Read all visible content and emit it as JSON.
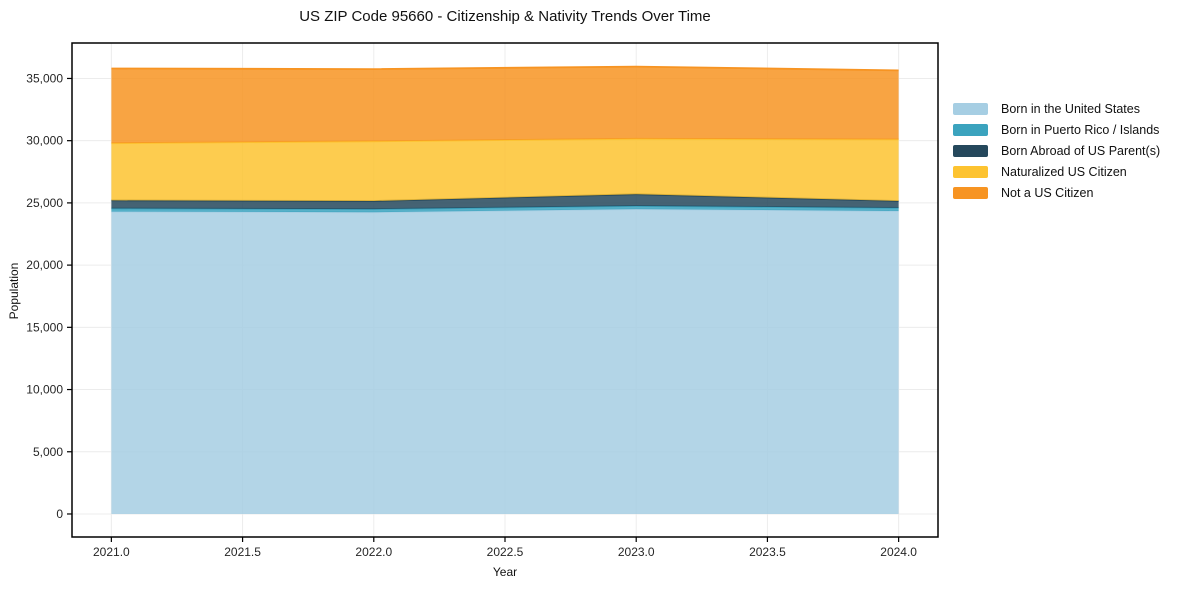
{
  "title": "US ZIP Code 95660 - Citizenship & Nativity Trends Over Time",
  "chart_data": {
    "type": "area",
    "stacked": true,
    "title": "US ZIP Code 95660 - Citizenship & Nativity Trends Over Time",
    "xlabel": "Year",
    "ylabel": "Population",
    "x": [
      2021,
      2022,
      2023,
      2024
    ],
    "series": [
      {
        "name": "Born in the United States",
        "color": "#a6cee3",
        "values": [
          24300,
          24250,
          24500,
          24350
        ]
      },
      {
        "name": "Born in Puerto Rico / Islands",
        "color": "#3ba3be",
        "values": [
          250,
          250,
          250,
          250
        ]
      },
      {
        "name": "Born Abroad of US Parent(s)",
        "color": "#25485c",
        "values": [
          650,
          650,
          950,
          550
        ]
      },
      {
        "name": "Naturalized US Citizen",
        "color": "#fdc330",
        "values": [
          4600,
          4800,
          4450,
          4950
        ]
      },
      {
        "name": "Not a US Citizen",
        "color": "#f79422",
        "values": [
          6000,
          5800,
          5800,
          5550
        ]
      }
    ],
    "totals": [
      35800,
      35750,
      35950,
      35650
    ],
    "xlim": [
      2020.85,
      2024.15
    ],
    "ylim": [
      -1850,
      37850
    ],
    "xticks": [
      2021.0,
      2021.5,
      2022.0,
      2022.5,
      2023.0,
      2023.5,
      2024.0
    ],
    "xticklabels": [
      "2021.0",
      "2021.5",
      "2022.0",
      "2022.5",
      "2023.0",
      "2023.5",
      "2024.0"
    ],
    "yticks": [
      0,
      5000,
      10000,
      15000,
      20000,
      25000,
      30000,
      35000
    ],
    "yticklabels": [
      "0",
      "5,000",
      "10,000",
      "15,000",
      "20,000",
      "25,000",
      "30,000",
      "35,000"
    ],
    "grid": true,
    "legend_position": "right of plot, no frame"
  },
  "colors": {
    "background": "#ffffff",
    "grid": "#ececec",
    "spine": "#000000",
    "tick_text": "#262626"
  }
}
